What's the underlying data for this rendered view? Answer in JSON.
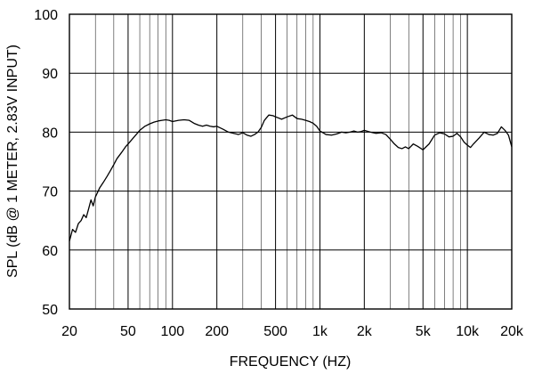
{
  "chart_data": {
    "type": "line",
    "title": "",
    "xlabel": "FREQUENCY (HZ)",
    "ylabel": "SPL (dB @ 1 METER, 2.83V INPUT)",
    "x_scale": "log",
    "xlim": [
      20,
      20000
    ],
    "ylim": [
      50,
      100
    ],
    "grid": true,
    "legend": "none",
    "colors": {
      "line": "#000000",
      "grid_major": "#000000",
      "grid_minor": "#000000",
      "background": "#ffffff"
    },
    "x_ticks": [
      {
        "value": 20,
        "label": "20"
      },
      {
        "value": 50,
        "label": "50"
      },
      {
        "value": 100,
        "label": "100"
      },
      {
        "value": 200,
        "label": "200"
      },
      {
        "value": 500,
        "label": "500"
      },
      {
        "value": 1000,
        "label": "1k"
      },
      {
        "value": 2000,
        "label": "2k"
      },
      {
        "value": 5000,
        "label": "5k"
      },
      {
        "value": 10000,
        "label": "10k"
      },
      {
        "value": 20000,
        "label": "20k"
      }
    ],
    "x_minor_grid": [
      30,
      40,
      60,
      70,
      80,
      90,
      300,
      400,
      600,
      700,
      800,
      900,
      3000,
      4000,
      6000,
      7000,
      8000,
      9000
    ],
    "y_ticks": [
      {
        "value": 50,
        "label": "50"
      },
      {
        "value": 60,
        "label": "60"
      },
      {
        "value": 70,
        "label": "70"
      },
      {
        "value": 80,
        "label": "80"
      },
      {
        "value": 90,
        "label": "90"
      },
      {
        "value": 100,
        "label": "100"
      }
    ],
    "series": [
      {
        "x": [
          20,
          21,
          22,
          23,
          24,
          25,
          26,
          27,
          28,
          29,
          30,
          32,
          34,
          36,
          38,
          40,
          42,
          45,
          48,
          50,
          55,
          60,
          65,
          70,
          75,
          80,
          85,
          90,
          95,
          100,
          110,
          120,
          130,
          140,
          150,
          160,
          170,
          180,
          190,
          200,
          220,
          240,
          260,
          280,
          300,
          320,
          340,
          360,
          380,
          400,
          420,
          450,
          480,
          500,
          550,
          600,
          650,
          700,
          750,
          800,
          850,
          900,
          950,
          1000,
          1100,
          1200,
          1300,
          1400,
          1500,
          1600,
          1700,
          1800,
          1900,
          2000,
          2200,
          2400,
          2600,
          2800,
          3000,
          3200,
          3400,
          3600,
          3800,
          4000,
          4300,
          4600,
          5000,
          5500,
          6000,
          6500,
          7000,
          7500,
          8000,
          8500,
          9000,
          9500,
          10000,
          10500,
          11000,
          12000,
          13000,
          14000,
          15000,
          16000,
          17000,
          18000,
          19000,
          20000
        ],
        "y": [
          61.5,
          63.5,
          63.0,
          64.5,
          65.0,
          66.0,
          65.5,
          67.0,
          68.5,
          67.5,
          69.0,
          70.5,
          71.5,
          72.5,
          73.5,
          74.5,
          75.5,
          76.5,
          77.5,
          78.0,
          79.2,
          80.3,
          81.0,
          81.4,
          81.7,
          81.9,
          82.0,
          82.1,
          82.0,
          81.8,
          82.0,
          82.1,
          82.0,
          81.5,
          81.2,
          81.0,
          81.2,
          81.0,
          80.9,
          81.0,
          80.5,
          80.0,
          79.8,
          79.6,
          79.9,
          79.5,
          79.3,
          79.6,
          80.0,
          80.8,
          82.0,
          82.9,
          82.8,
          82.6,
          82.2,
          82.6,
          82.9,
          82.3,
          82.2,
          82.0,
          81.8,
          81.5,
          81.0,
          80.2,
          79.6,
          79.5,
          79.7,
          80.0,
          79.9,
          80.0,
          80.2,
          80.0,
          80.1,
          80.3,
          80.0,
          79.8,
          79.9,
          79.6,
          78.8,
          78.0,
          77.4,
          77.2,
          77.5,
          77.2,
          78.0,
          77.6,
          77.0,
          78.0,
          79.5,
          79.9,
          79.7,
          79.2,
          79.3,
          79.8,
          79.2,
          78.3,
          77.8,
          77.4,
          78.0,
          79.0,
          80.0,
          79.6,
          79.5,
          79.8,
          80.9,
          80.3,
          79.5,
          77.5
        ]
      }
    ]
  }
}
